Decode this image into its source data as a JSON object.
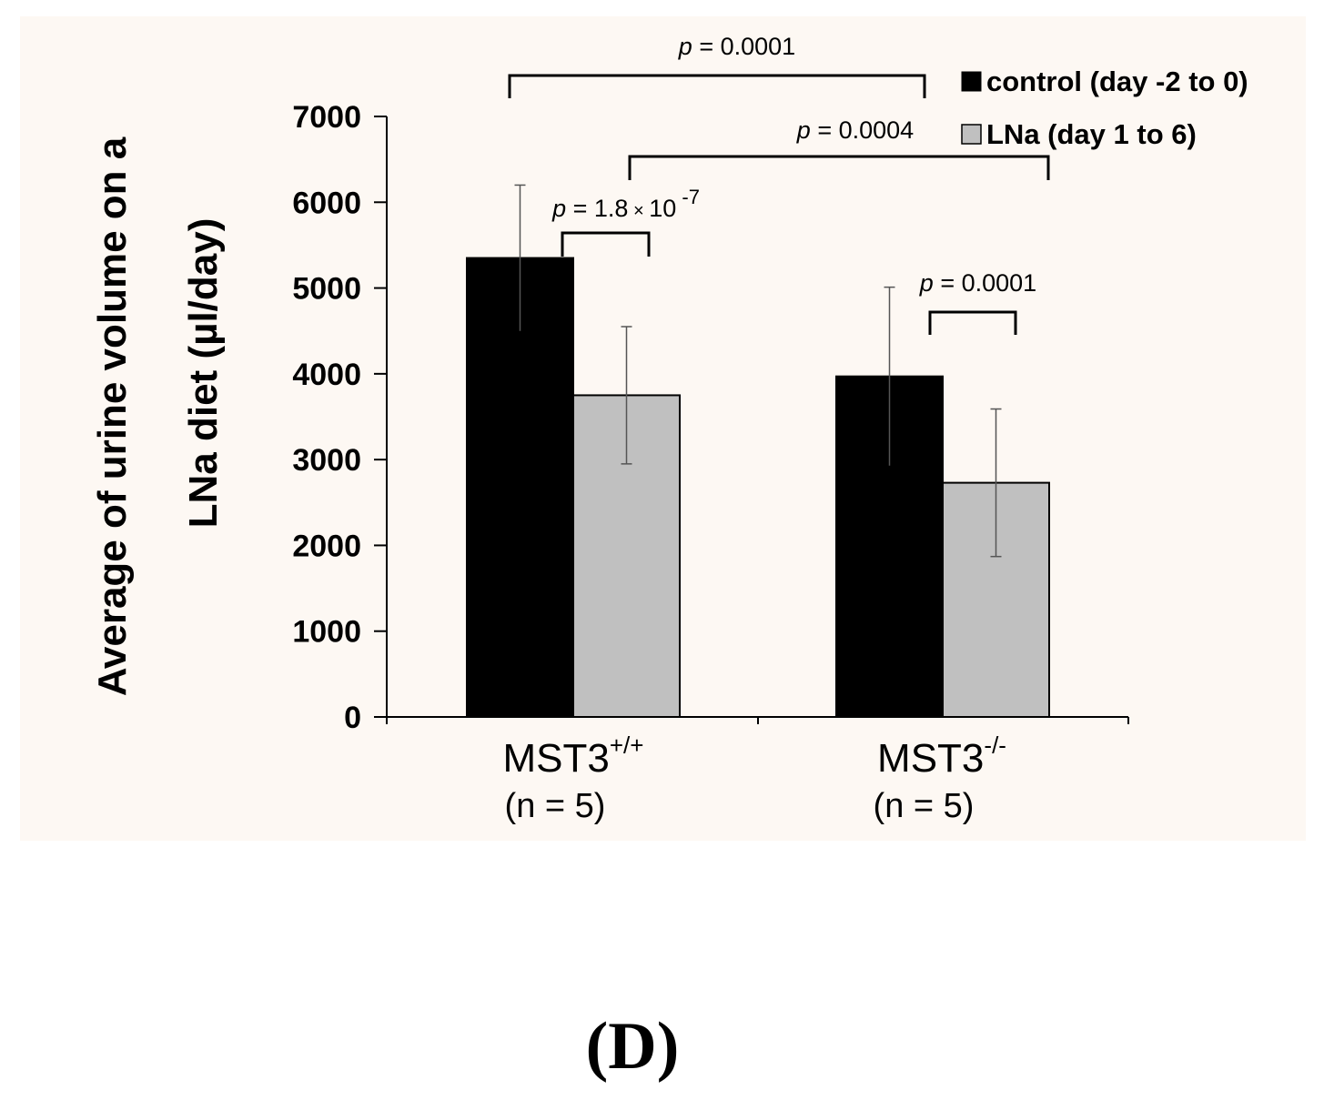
{
  "figure_label": "(D)",
  "chart_data": {
    "type": "bar",
    "ylabel_line1": "Average of urine volume on a",
    "ylabel_line2": "LNa diet (µl/day)",
    "ylim": [
      0,
      7000
    ],
    "yticks": [
      0,
      1000,
      2000,
      3000,
      4000,
      5000,
      6000,
      7000
    ],
    "ytick_labels": [
      "0",
      "1000",
      "2000",
      "3000",
      "4000",
      "5000",
      "6000",
      "7000"
    ],
    "categories": [
      {
        "main": "MST3",
        "sup": "+/+",
        "n": "(n = 5)"
      },
      {
        "main": "MST3",
        "sup": "-/-",
        "n": "(n = 5)"
      }
    ],
    "series": [
      {
        "name": "control (day -2 to 0)",
        "color": "#000000",
        "values": [
          5350,
          3970
        ],
        "errors": [
          850,
          1040
        ]
      },
      {
        "name": "LNa (day 1 to 6)",
        "color": "#c0c0c0",
        "values": [
          3750,
          2730
        ],
        "errors": [
          800,
          860
        ]
      }
    ],
    "legend_position": "top-right",
    "annotations": [
      {
        "p": "p",
        "eq": "= 0.0001"
      },
      {
        "p": "p",
        "eq": "= 0.0004"
      },
      {
        "p": "p",
        "eq": "= 1.8",
        "times": "×",
        "base": "10",
        "exp": "-7"
      },
      {
        "p": "p",
        "eq": "= 0.0001"
      }
    ]
  }
}
